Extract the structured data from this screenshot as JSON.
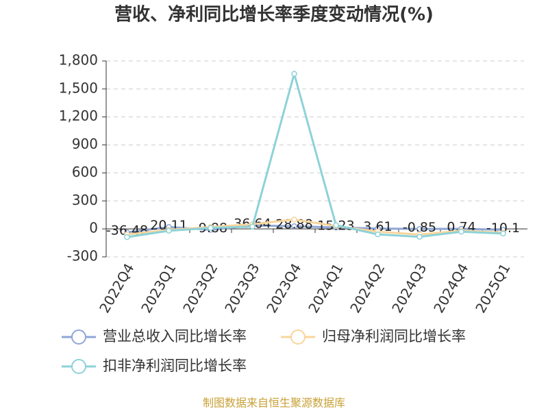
{
  "chart_data": {
    "type": "line",
    "title": "营收、净利同比增长率季度变动情况(%)",
    "categories": [
      "2022Q4",
      "2023Q1",
      "2023Q2",
      "2023Q3",
      "2023Q4",
      "2024Q1",
      "2024Q2",
      "2024Q3",
      "2024Q4",
      "2025Q1"
    ],
    "series": [
      {
        "name": "营业总收入同比增长率",
        "color": "#8ea6d6",
        "values": [
          -36.48,
          20.11,
          -9.88,
          36.64,
          28.88,
          15.23,
          3.61,
          -0.85,
          0.74,
          -10.1
        ]
      },
      {
        "name": "归母净利润同比增长率",
        "color": "#f8d59c",
        "values": [
          -60,
          -10,
          20,
          50,
          100,
          30,
          -30,
          -60,
          -20,
          -40
        ]
      },
      {
        "name": "扣非净利润同比增长率",
        "color": "#8cd2d8",
        "values": [
          -88,
          -20,
          10,
          25,
          1662,
          40,
          -59,
          -85,
          -30,
          -50
        ]
      }
    ],
    "ylim": [
      -300,
      1800
    ],
    "yticks": [
      -300,
      0,
      300,
      600,
      900,
      {
        "value": 1200,
        "label": "1,200"
      },
      {
        "value": 1500,
        "label": "1,500"
      },
      {
        "value": 1800,
        "label": "1,800"
      }
    ],
    "grid": true,
    "source": "制图数据来自恒生聚源数据库"
  }
}
